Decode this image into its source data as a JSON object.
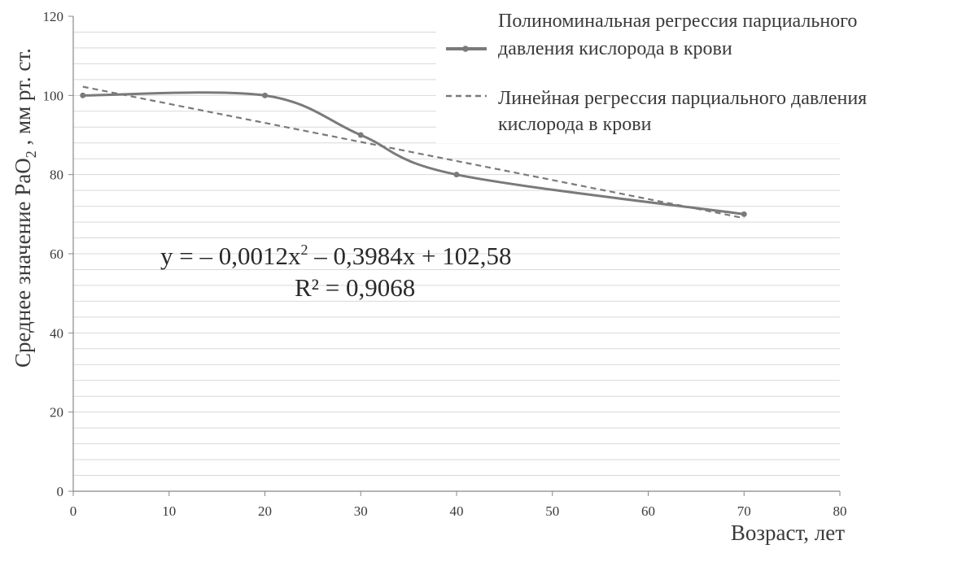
{
  "chart_data": {
    "type": "line",
    "xlabel": "Возраст, лет",
    "ylabel": "Среднее значение PaO₂ , мм рт. ст.",
    "xlim": [
      0,
      80
    ],
    "ylim": [
      0,
      120
    ],
    "x_ticks": [
      0,
      10,
      20,
      30,
      40,
      50,
      60,
      70,
      80
    ],
    "y_ticks": [
      0,
      20,
      40,
      60,
      80,
      100,
      120
    ],
    "grid": true,
    "legend_position": "top-right",
    "series": [
      {
        "name": "Полиноминальная регрессия парциального давления кислорода в крови",
        "style": "solid-with-markers",
        "color": "#7a7a7a",
        "x": [
          1,
          20,
          30,
          40,
          70
        ],
        "y": [
          100,
          100,
          90,
          80,
          70
        ]
      },
      {
        "name": "Линейная регрессия парциального давления кислорода в крови",
        "style": "dashed",
        "color": "#7a7a7a",
        "x": [
          1,
          70
        ],
        "y": [
          102.2,
          69
        ]
      }
    ],
    "annotations": [
      "y = – 0,0012x² – 0,3984x + 102,58",
      "R² = 0,9068"
    ]
  },
  "legend": {
    "poly_line1": "Полиноминальная регрессия парциального",
    "poly_line2": "давления кислорода в крови",
    "lin_line1": "Линейная регрессия парциального давления",
    "lin_line2": "кислорода в крови"
  },
  "ylabel_parts": {
    "before": "Среднее значение PaO",
    "sub": "2",
    "after": " , мм рт. ст."
  },
  "equation": {
    "pre": "y = – 0,0012x",
    "sup": "2",
    "post": " – 0,3984x + 102,58",
    "r2": "R² = 0,9068"
  }
}
